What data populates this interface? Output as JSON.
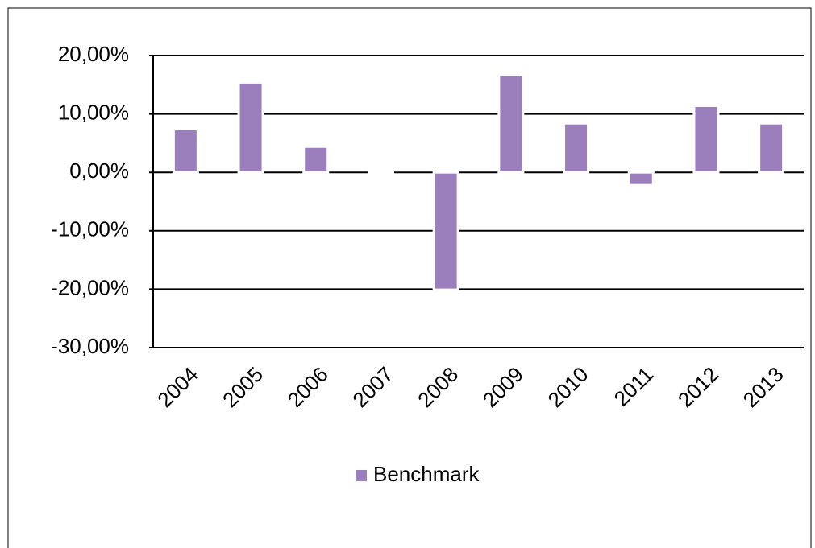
{
  "chart_data": {
    "type": "bar",
    "categories": [
      "2004",
      "2005",
      "2006",
      "2007",
      "2008",
      "2009",
      "2010",
      "2011",
      "2012",
      "2013"
    ],
    "series": [
      {
        "name": "Benchmark",
        "color": "#9b7fbd",
        "values": [
          7.4,
          15.4,
          4.4,
          0.4,
          -20.1,
          16.7,
          8.4,
          -2.2,
          11.4,
          8.4
        ]
      }
    ],
    "ylim": [
      -30,
      20
    ],
    "yticks": [
      {
        "value": -30,
        "label": "-30,00%"
      },
      {
        "value": -20,
        "label": "-20,00%"
      },
      {
        "value": -10,
        "label": "-10,00%"
      },
      {
        "value": 0,
        "label": "0,00%"
      },
      {
        "value": 10,
        "label": "10,00%"
      },
      {
        "value": 20,
        "label": "20,00%"
      }
    ],
    "grid": true,
    "legend": "bottom"
  }
}
